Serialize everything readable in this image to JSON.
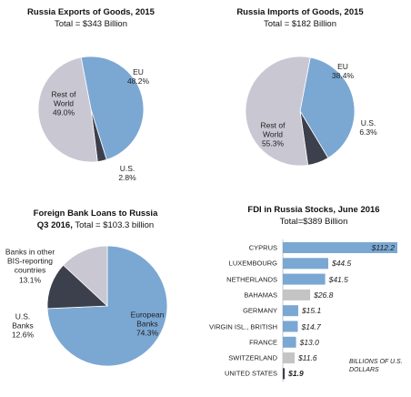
{
  "chart_data": [
    {
      "type": "pie",
      "title": "Russia Exports of Goods, 2015",
      "subtitle": "Total = $343 Billion",
      "categories": [
        "EU",
        "U.S.",
        "Rest of World"
      ],
      "values": [
        48.2,
        2.8,
        49.0
      ],
      "value_labels": [
        "48.2%",
        "2.8%",
        "49.0%"
      ],
      "colors": [
        "#7ba7d3",
        "#3c404c",
        "#c8c7d2"
      ]
    },
    {
      "type": "pie",
      "title": "Russia Imports of Goods, 2015",
      "subtitle": "Total = $182 Billion",
      "categories": [
        "EU",
        "U.S.",
        "Rest of World"
      ],
      "values": [
        38.4,
        6.3,
        55.3
      ],
      "value_labels": [
        "38.4%",
        "6.3%",
        "55.3%"
      ],
      "colors": [
        "#7ba7d3",
        "#3c404c",
        "#c8c7d2"
      ]
    },
    {
      "type": "pie",
      "title": "Foreign Bank Loans to Russia Q3 2016,",
      "subtitle": "Total = $103.3 billion",
      "categories": [
        "European Banks",
        "U.S. Banks",
        "Banks in other BIS-reporting countries"
      ],
      "values": [
        74.3,
        12.6,
        13.1
      ],
      "value_labels": [
        "74.3%",
        "12.6%",
        "13.1%"
      ],
      "colors": [
        "#7ba7d3",
        "#3c404c",
        "#c8c7d2"
      ]
    },
    {
      "type": "bar",
      "title": "FDI in Russia Stocks, June 2016",
      "subtitle": "Total=$389 Billion",
      "categories": [
        "CYPRUS",
        "LUXEMBOURG",
        "NETHERLANDS",
        "BAHAMAS",
        "GERMANY",
        "VIRGIN ISL., BRITISH",
        "FRANCE",
        "SWITZERLAND",
        "UNITED STATES"
      ],
      "values": [
        112.2,
        44.5,
        41.5,
        26.8,
        15.1,
        14.7,
        13.0,
        11.6,
        1.9
      ],
      "value_labels": [
        "$112.2",
        "$44.5",
        "$41.5",
        "$26.8",
        "$15.1",
        "$14.7",
        "$13.0",
        "$11.6",
        "$1.9"
      ],
      "colors": [
        "#7ba7d3",
        "#7ba7d3",
        "#7ba7d3",
        "#c4c4c4",
        "#7ba7d3",
        "#7ba7d3",
        "#7ba7d3",
        "#c4c4c4",
        "#3c404c"
      ],
      "annotation": "BILLIONS OF U.S. DOLLARS"
    }
  ]
}
